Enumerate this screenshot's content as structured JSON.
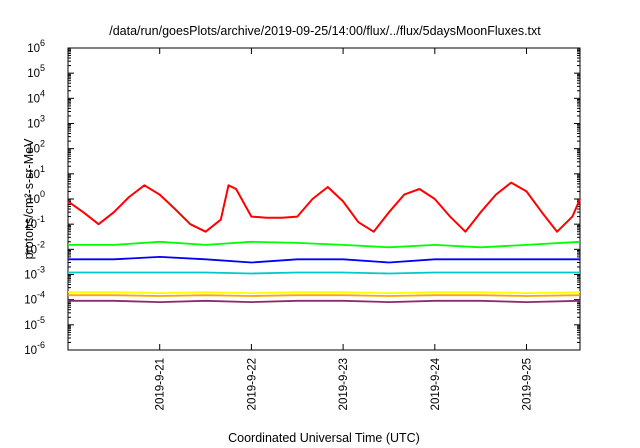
{
  "chart_data": {
    "type": "line",
    "title": "/data/run/goesPlots/archive/2019-09-25/14:00/flux/../flux/5daysMoonFluxes.txt",
    "xlabel": "Coordinated Universal Time (UTC)",
    "ylabel": "protons/cm²-s-sr-MeV",
    "yscale": "log",
    "ylim": [
      1e-06,
      1000000.0
    ],
    "xlim": [
      "2019-09-20 00:00",
      "2019-09-25 14:00"
    ],
    "grid": false,
    "legend": "none",
    "y_tick_labels": [
      {
        "exp": "-6",
        "value": 1e-06
      },
      {
        "exp": "-5",
        "value": 1e-05
      },
      {
        "exp": "-4",
        "value": 0.0001
      },
      {
        "exp": "-3",
        "value": 0.001
      },
      {
        "exp": "-2",
        "value": 0.01
      },
      {
        "exp": "-1",
        "value": 0.1
      },
      {
        "exp": "0",
        "value": 1
      },
      {
        "exp": "1",
        "value": 10.0
      },
      {
        "exp": "2",
        "value": 100.0
      },
      {
        "exp": "3",
        "value": 1000.0
      },
      {
        "exp": "4",
        "value": 10000.0
      },
      {
        "exp": "5",
        "value": 100000.0
      },
      {
        "exp": "6",
        "value": 1000000.0
      }
    ],
    "x_tick_labels": [
      {
        "label": "2019-9-21",
        "value": "2019-09-21 00:00"
      },
      {
        "label": "2019-9-22",
        "value": "2019-09-22 00:00"
      },
      {
        "label": "2019-9-23",
        "value": "2019-09-23 00:00"
      },
      {
        "label": "2019-9-24",
        "value": "2019-09-24 00:00"
      },
      {
        "label": "2019-9-25",
        "value": "2019-09-25 00:00"
      }
    ],
    "series": [
      {
        "color": "#ff0000",
        "x": [
          "2019-09-20 00:00",
          "2019-09-20 04:00",
          "2019-09-20 08:00",
          "2019-09-20 12:00",
          "2019-09-20 16:00",
          "2019-09-20 20:00",
          "2019-09-21 00:00",
          "2019-09-21 04:00",
          "2019-09-21 08:00",
          "2019-09-21 12:00",
          "2019-09-21 16:00",
          "2019-09-21 18:00",
          "2019-09-21 20:00",
          "2019-09-22 00:00",
          "2019-09-22 04:00",
          "2019-09-22 08:00",
          "2019-09-22 12:00",
          "2019-09-22 16:00",
          "2019-09-22 20:00",
          "2019-09-23 00:00",
          "2019-09-23 04:00",
          "2019-09-23 08:00",
          "2019-09-23 12:00",
          "2019-09-23 16:00",
          "2019-09-23 20:00",
          "2019-09-24 00:00",
          "2019-09-24 04:00",
          "2019-09-24 08:00",
          "2019-09-24 12:00",
          "2019-09-24 16:00",
          "2019-09-24 20:00",
          "2019-09-25 00:00",
          "2019-09-25 04:00",
          "2019-09-25 08:00",
          "2019-09-25 12:00",
          "2019-09-25 14:00"
        ],
        "y": [
          0.8,
          0.3,
          0.1,
          0.3,
          1.2,
          3.5,
          1.5,
          0.4,
          0.1,
          0.05,
          0.15,
          3.5,
          2.5,
          0.2,
          0.18,
          0.18,
          0.2,
          1.0,
          3.0,
          0.8,
          0.12,
          0.05,
          0.3,
          1.5,
          2.5,
          1.0,
          0.2,
          0.05,
          0.3,
          1.5,
          4.5,
          2.0,
          0.3,
          0.05,
          0.2,
          1.0
        ]
      },
      {
        "color": "#00ff00",
        "x": [
          "2019-09-20 00:00",
          "2019-09-20 12:00",
          "2019-09-21 00:00",
          "2019-09-21 12:00",
          "2019-09-22 00:00",
          "2019-09-22 12:00",
          "2019-09-23 00:00",
          "2019-09-23 12:00",
          "2019-09-24 00:00",
          "2019-09-24 12:00",
          "2019-09-25 00:00",
          "2019-09-25 14:00"
        ],
        "y": [
          0.015,
          0.015,
          0.02,
          0.015,
          0.02,
          0.018,
          0.015,
          0.012,
          0.015,
          0.012,
          0.015,
          0.02
        ]
      },
      {
        "color": "#0000ff",
        "x": [
          "2019-09-20 00:00",
          "2019-09-20 12:00",
          "2019-09-21 00:00",
          "2019-09-21 12:00",
          "2019-09-22 00:00",
          "2019-09-22 12:00",
          "2019-09-23 00:00",
          "2019-09-23 12:00",
          "2019-09-24 00:00",
          "2019-09-24 12:00",
          "2019-09-25 00:00",
          "2019-09-25 14:00"
        ],
        "y": [
          0.004,
          0.004,
          0.005,
          0.004,
          0.003,
          0.004,
          0.004,
          0.003,
          0.004,
          0.004,
          0.004,
          0.004
        ]
      },
      {
        "color": "#00c8c8",
        "x": [
          "2019-09-20 00:00",
          "2019-09-20 12:00",
          "2019-09-21 00:00",
          "2019-09-21 12:00",
          "2019-09-22 00:00",
          "2019-09-22 12:00",
          "2019-09-23 00:00",
          "2019-09-23 12:00",
          "2019-09-24 00:00",
          "2019-09-24 12:00",
          "2019-09-25 00:00",
          "2019-09-25 14:00"
        ],
        "y": [
          0.0012,
          0.0012,
          0.0012,
          0.0012,
          0.0011,
          0.0012,
          0.0012,
          0.0011,
          0.0012,
          0.0012,
          0.0012,
          0.0012
        ]
      },
      {
        "color": "#ffff00",
        "x": [
          "2019-09-20 00:00",
          "2019-09-20 12:00",
          "2019-09-21 00:00",
          "2019-09-21 12:00",
          "2019-09-22 00:00",
          "2019-09-22 12:00",
          "2019-09-23 00:00",
          "2019-09-23 12:00",
          "2019-09-24 00:00",
          "2019-09-24 12:00",
          "2019-09-25 00:00",
          "2019-09-25 14:00"
        ],
        "y": [
          0.0002,
          0.0002,
          0.00018,
          0.0002,
          0.00018,
          0.0002,
          0.0002,
          0.00018,
          0.0002,
          0.0002,
          0.00018,
          0.0002
        ]
      },
      {
        "color": "#ffa500",
        "x": [
          "2019-09-20 00:00",
          "2019-09-20 12:00",
          "2019-09-21 00:00",
          "2019-09-21 12:00",
          "2019-09-22 00:00",
          "2019-09-22 12:00",
          "2019-09-23 00:00",
          "2019-09-23 12:00",
          "2019-09-24 00:00",
          "2019-09-24 12:00",
          "2019-09-25 00:00",
          "2019-09-25 14:00"
        ],
        "y": [
          0.00015,
          0.00015,
          0.00014,
          0.00015,
          0.00014,
          0.00015,
          0.00015,
          0.00014,
          0.00015,
          0.00015,
          0.00014,
          0.00015
        ]
      },
      {
        "color": "#8b2a6e",
        "x": [
          "2019-09-20 00:00",
          "2019-09-20 12:00",
          "2019-09-21 00:00",
          "2019-09-21 12:00",
          "2019-09-22 00:00",
          "2019-09-22 12:00",
          "2019-09-23 00:00",
          "2019-09-23 12:00",
          "2019-09-24 00:00",
          "2019-09-24 12:00",
          "2019-09-25 00:00",
          "2019-09-25 14:00"
        ],
        "y": [
          9e-05,
          9e-05,
          8e-05,
          9e-05,
          8e-05,
          9e-05,
          9e-05,
          8e-05,
          9e-05,
          9e-05,
          8e-05,
          9e-05
        ]
      }
    ]
  }
}
